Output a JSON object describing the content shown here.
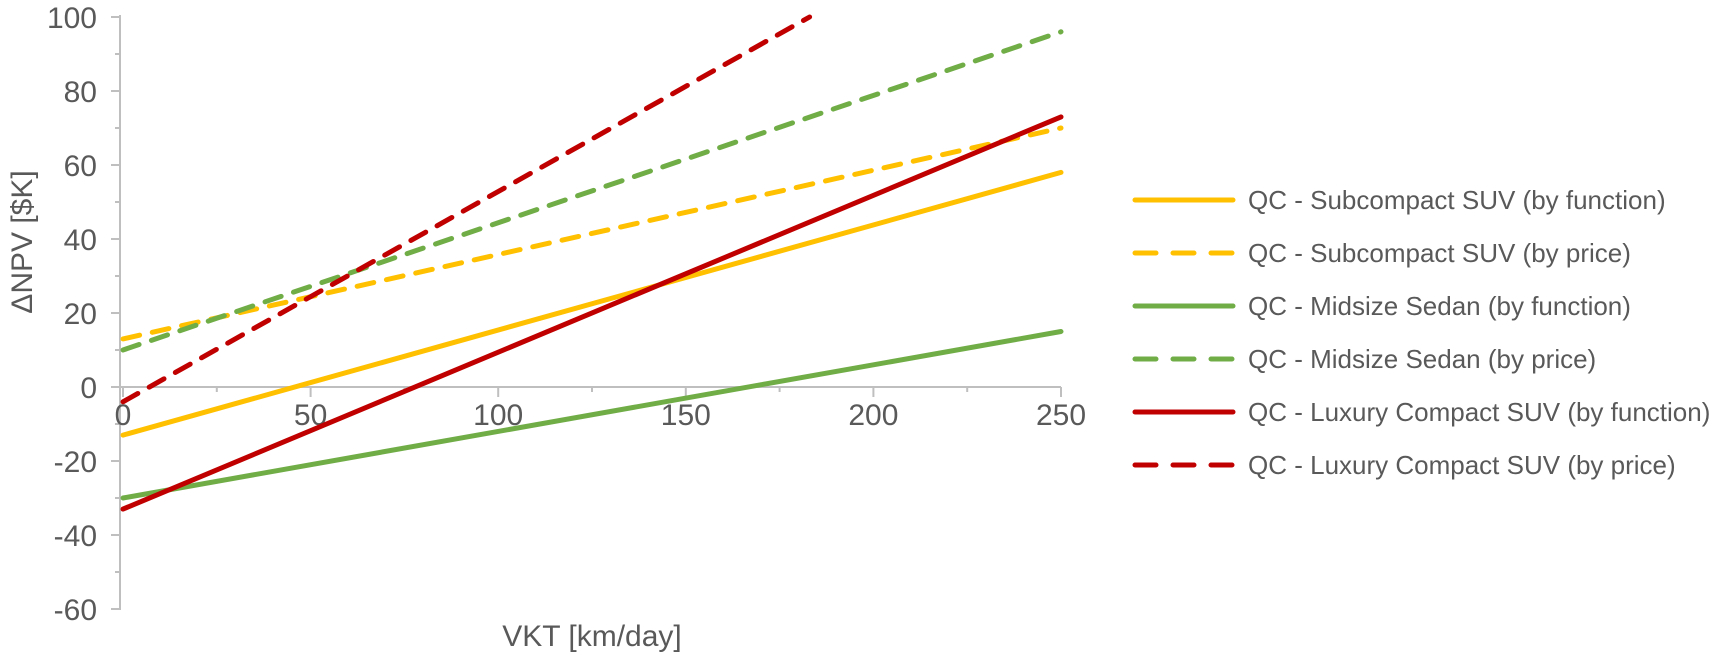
{
  "chart_data": {
    "type": "line",
    "title": "",
    "xlabel": "VKT [km/day]",
    "ylabel": "ΔNPV [$K]",
    "xlim": [
      0,
      250
    ],
    "ylim": [
      -60,
      100
    ],
    "x_ticks": [
      0,
      50,
      100,
      150,
      200,
      250
    ],
    "y_ticks": [
      100,
      80,
      60,
      40,
      20,
      0,
      -20,
      -40,
      -60
    ],
    "x_minor_step": 25,
    "y_minor_step": 10,
    "grid": "none (only zero axis line shown)",
    "legend_position": "right",
    "colors": {
      "axis": "#BFBFBF",
      "text": "#595959",
      "background": "#FFFFFF"
    },
    "series": [
      {
        "name": "QC - Subcompact SUV (by function)",
        "color": "#FFC000",
        "dash": "solid",
        "points": [
          [
            0,
            -13
          ],
          [
            250,
            58
          ]
        ]
      },
      {
        "name": "QC - Subcompact SUV (by price)",
        "color": "#FFC000",
        "dash": "dashed",
        "points": [
          [
            0,
            13
          ],
          [
            250,
            70
          ]
        ]
      },
      {
        "name": "QC - Midsize Sedan (by function)",
        "color": "#70AD47",
        "dash": "solid",
        "points": [
          [
            0,
            -30
          ],
          [
            250,
            15
          ]
        ]
      },
      {
        "name": "QC - Midsize Sedan (by price)",
        "color": "#70AD47",
        "dash": "dashed",
        "points": [
          [
            0,
            10
          ],
          [
            250,
            96
          ]
        ]
      },
      {
        "name": "QC - Luxury Compact SUV (by function)",
        "color": "#C00000",
        "dash": "solid",
        "points": [
          [
            0,
            -33
          ],
          [
            250,
            73
          ]
        ]
      },
      {
        "name": "QC - Luxury Compact SUV (by price)",
        "color": "#C00000",
        "dash": "dashed",
        "points": [
          [
            0,
            -4
          ],
          [
            183,
            100
          ]
        ]
      }
    ]
  }
}
